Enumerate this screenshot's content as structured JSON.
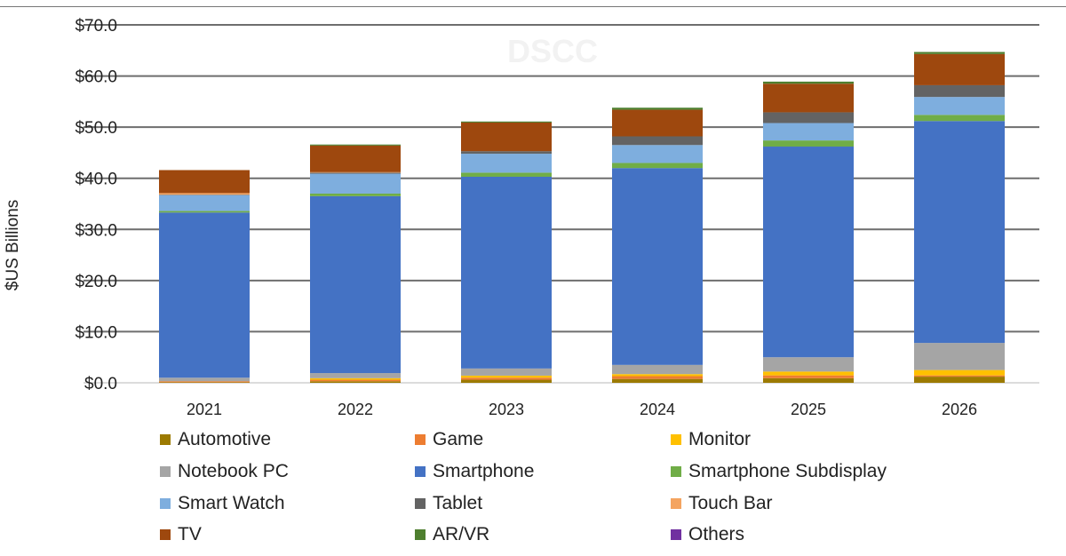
{
  "chart_data": {
    "type": "bar",
    "stacked": true,
    "title": "",
    "watermark": "DSCC",
    "xlabel": "",
    "ylabel": "$US Billions",
    "ylim": [
      0,
      70
    ],
    "yticks": [
      "$0.0",
      "$10.0",
      "$20.0",
      "$30.0",
      "$40.0",
      "$50.0",
      "$60.0",
      "$70.0"
    ],
    "grid": true,
    "legend_position": "bottom",
    "categories": [
      "2021",
      "2022",
      "2023",
      "2024",
      "2025",
      "2026"
    ],
    "series": [
      {
        "name": "Automotive",
        "color": "#9C7A00",
        "values": [
          0.1,
          0.3,
          0.6,
          0.75,
          0.9,
          1.2
        ]
      },
      {
        "name": "Game",
        "color": "#ED7D31",
        "values": [
          0.2,
          0.3,
          0.4,
          0.55,
          0.55,
          0.25
        ]
      },
      {
        "name": "Monitor",
        "color": "#FFC000",
        "values": [
          0.0,
          0.3,
          0.4,
          0.4,
          0.75,
          1.05
        ]
      },
      {
        "name": "Notebook PC",
        "color": "#A5A5A5",
        "values": [
          0.7,
          1.0,
          1.4,
          1.8,
          2.8,
          5.3
        ]
      },
      {
        "name": "Smartphone",
        "color": "#4472C4",
        "values": [
          32.3,
          34.6,
          37.5,
          38.5,
          41.2,
          43.4
        ]
      },
      {
        "name": "Smartphone Subdisplay",
        "color": "#70AD47",
        "values": [
          0.3,
          0.5,
          0.8,
          1.0,
          1.2,
          1.2
        ]
      },
      {
        "name": "Smart Watch",
        "color": "#7EAEDE",
        "values": [
          3.1,
          3.9,
          3.7,
          3.5,
          3.4,
          3.5
        ]
      },
      {
        "name": "Tablet",
        "color": "#636363",
        "values": [
          0.1,
          0.2,
          0.5,
          1.7,
          2.1,
          2.3
        ]
      },
      {
        "name": "Touch Bar",
        "color": "#F4A460",
        "values": [
          0.3,
          0.1,
          0.0,
          0.0,
          0.0,
          0.0
        ]
      },
      {
        "name": "TV",
        "color": "#9E480E",
        "values": [
          4.5,
          5.2,
          5.6,
          5.2,
          5.6,
          6.1
        ]
      },
      {
        "name": "AR/VR",
        "color": "#4E7F2F",
        "values": [
          0.0,
          0.2,
          0.2,
          0.4,
          0.4,
          0.4
        ]
      },
      {
        "name": "Others",
        "color": "#7030A0",
        "values": [
          0.0,
          0.0,
          0.0,
          0.0,
          0.0,
          0.0
        ]
      }
    ]
  }
}
